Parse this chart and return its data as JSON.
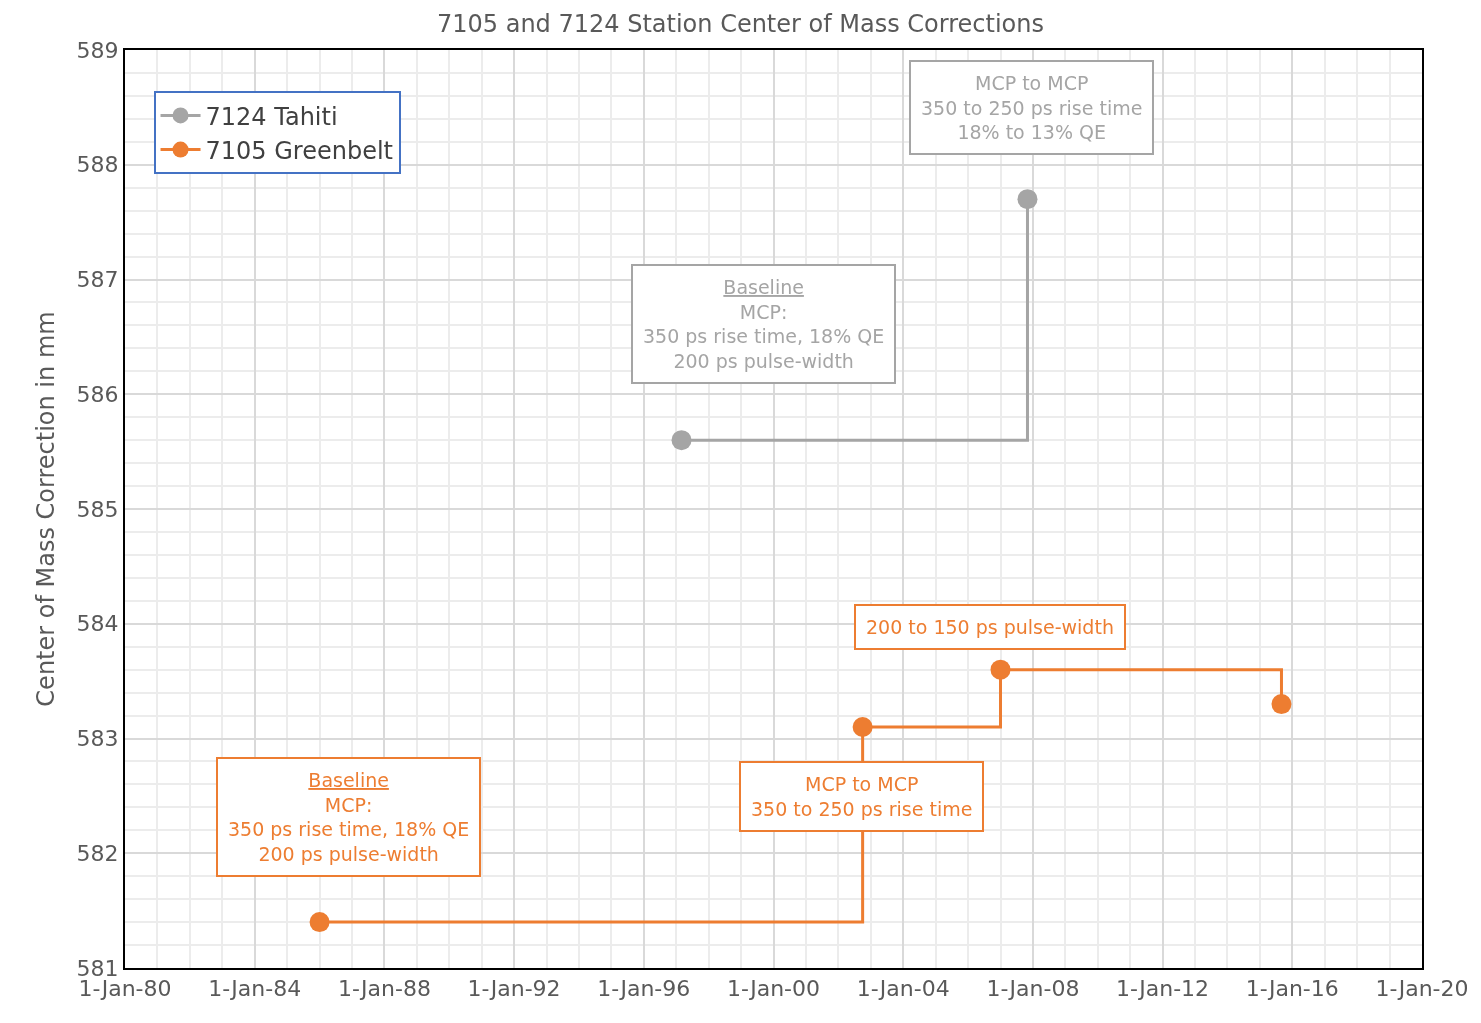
{
  "chart_data": {
    "type": "step",
    "title": "7105 and 7124 Station Center of Mass Corrections",
    "ylabel": "Center of Mass Correction in mm",
    "series": [
      {
        "name": "7124 Tahiti",
        "color": "#a5a5a5",
        "x": [
          "1997-03",
          "2007-11"
        ],
        "values": [
          585.6,
          587.7
        ]
      },
      {
        "name": "7105 Greenbelt",
        "color": "#ed7d31",
        "x": [
          "1986-01",
          "2002-10",
          "2007-01",
          "2015-09"
        ],
        "values": [
          581.4,
          583.1,
          583.6,
          583.3
        ]
      }
    ],
    "annotations": [
      "Baseline\nMCP:\n350 ps rise time, 18% QE\n200 ps pulse-width",
      "MCP to MCP\n350 to 250 ps rise time\n18% to 13% QE",
      "Baseline\nMCP:\n350 ps rise time, 18% QE\n200 ps pulse-width",
      "MCP to MCP\n350 to 250 ps rise time",
      "200 to 150 ps pulse-width"
    ],
    "xlim": [
      "1980-01-01",
      "2020-01-01"
    ],
    "xticks": [
      {
        "value": "1980-01-01",
        "label": "1-Jan-80"
      },
      {
        "value": "1984-01-01",
        "label": "1-Jan-84"
      },
      {
        "value": "1988-01-01",
        "label": "1-Jan-88"
      },
      {
        "value": "1992-01-01",
        "label": "1-Jan-92"
      },
      {
        "value": "1996-01-01",
        "label": "1-Jan-96"
      },
      {
        "value": "2000-01-01",
        "label": "1-Jan-00"
      },
      {
        "value": "2004-01-01",
        "label": "1-Jan-04"
      },
      {
        "value": "2008-01-01",
        "label": "1-Jan-08"
      },
      {
        "value": "2012-01-01",
        "label": "1-Jan-12"
      },
      {
        "value": "2016-01-01",
        "label": "1-Jan-16"
      },
      {
        "value": "2020-01-01",
        "label": "1-Jan-20"
      }
    ],
    "ylim": [
      581,
      589
    ],
    "yticks": [
      581,
      582,
      583,
      584,
      585,
      586,
      587,
      588,
      589
    ],
    "grid": true,
    "legend": "top left",
    "marker": "circle",
    "line_style": "solid"
  }
}
